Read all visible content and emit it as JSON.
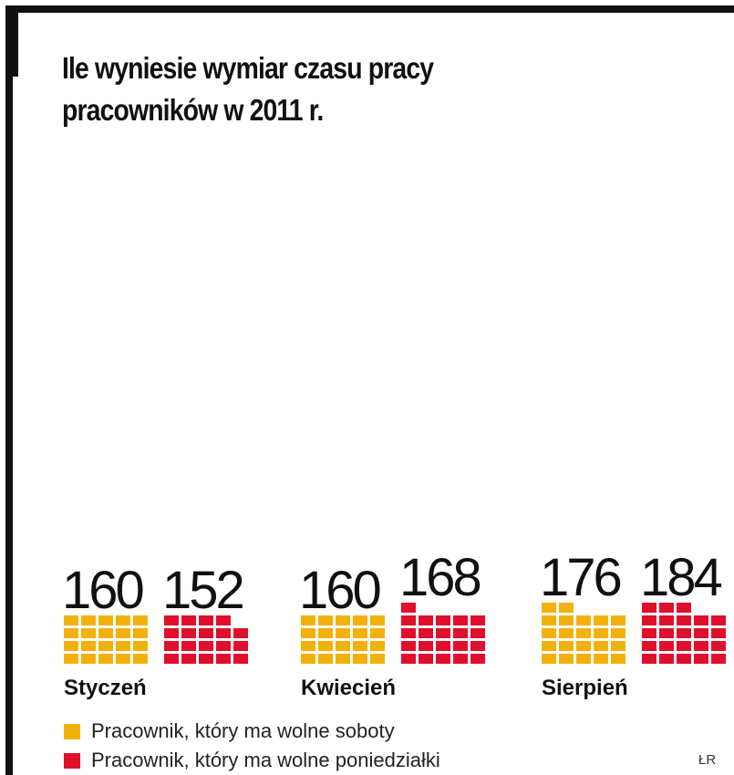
{
  "chart_data": {
    "type": "bar",
    "title": "Ile wyniesie wymiar czasu pracy pracowników w 2011 r.",
    "categories": [
      "Styczeń",
      "Kwiecień",
      "Sierpień"
    ],
    "series": [
      {
        "name": "Pracownik, który ma wolne soboty",
        "color": "#f2b10a",
        "values": [
          160,
          160,
          176
        ]
      },
      {
        "name": "Pracownik, który ma wolne poniedziałki",
        "color": "#e0102c",
        "values": [
          152,
          168,
          184
        ]
      }
    ],
    "value_labels": [
      [
        "160",
        "152"
      ],
      [
        "160",
        "168"
      ],
      [
        "176",
        "184"
      ]
    ],
    "encoding": "one block per 8 hours",
    "xlabel": "",
    "ylabel": "",
    "grid": false,
    "legend_position": "bottom-left"
  },
  "colors": {
    "saturdays": "#f2b10a",
    "mondays": "#e0102c",
    "frame": "#111111"
  },
  "credit": "ŁR"
}
